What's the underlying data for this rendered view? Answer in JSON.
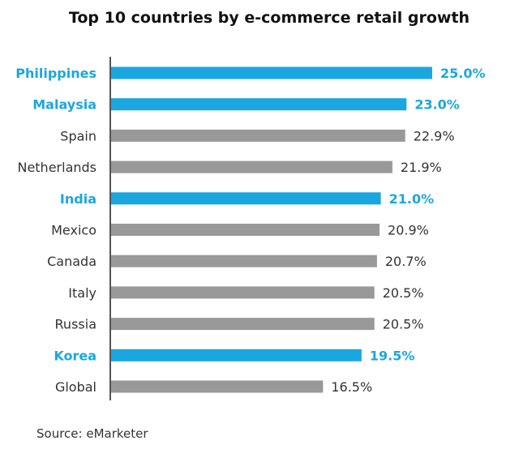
{
  "colors": {
    "highlight": "#1aa7e0",
    "normal": "#999999",
    "normal_text": "#333333",
    "axis": "#555555"
  },
  "chart_data": {
    "type": "bar",
    "orientation": "horizontal",
    "title": "Top 10 countries by e-commerce retail growth",
    "xlabel": "",
    "ylabel": "",
    "xlim": [
      0,
      25
    ],
    "grid": false,
    "legend": "none",
    "categories": [
      "Philippines",
      "Malaysia",
      "Spain",
      "Netherlands",
      "India",
      "Mexico",
      "Canada",
      "Italy",
      "Russia",
      "Korea",
      "Global"
    ],
    "values": [
      25.0,
      23.0,
      22.9,
      21.9,
      21.0,
      20.9,
      20.7,
      20.5,
      20.5,
      19.5,
      16.5
    ],
    "value_labels": [
      "25.0%",
      "23.0%",
      "22.9%",
      "21.9%",
      "21.0%",
      "20.9%",
      "20.7%",
      "20.5%",
      "20.5%",
      "19.5%",
      "16.5%"
    ],
    "highlighted": [
      true,
      true,
      false,
      false,
      true,
      false,
      false,
      false,
      false,
      true,
      false
    ]
  },
  "source": "Source: eMarketer"
}
